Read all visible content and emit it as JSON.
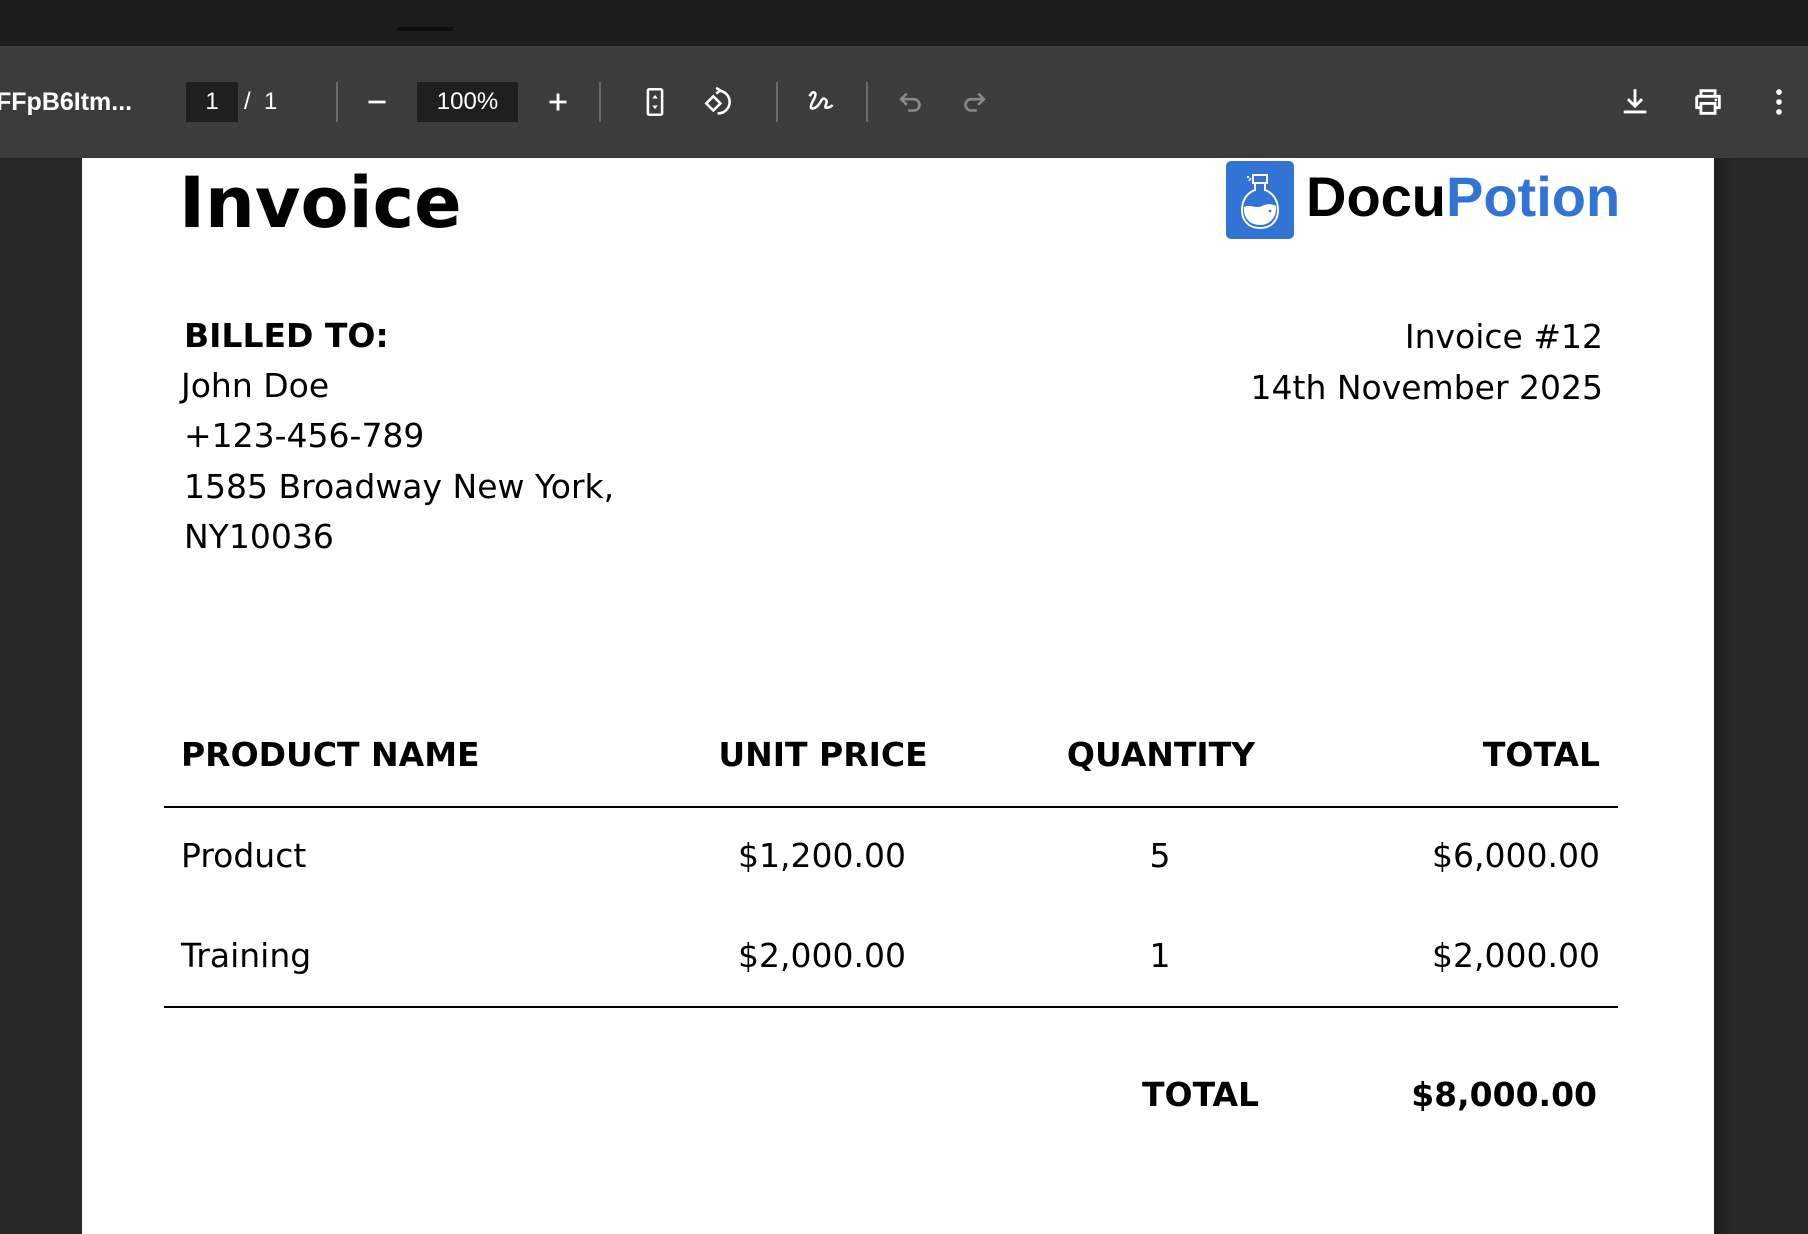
{
  "viewer": {
    "filename": "FFpB6Itm...",
    "page_current": "1",
    "page_separator": "/",
    "page_total": "1",
    "zoom": "100%",
    "icons": [
      "minus-icon",
      "plus-icon",
      "fit-page-icon",
      "rotate-icon",
      "draw-icon",
      "undo-icon",
      "redo-icon",
      "download-icon",
      "print-icon",
      "more-icon"
    ]
  },
  "invoice": {
    "title": "Invoice",
    "brand": {
      "part1": "Docu",
      "part2": "Potion",
      "accent": "#3273d6"
    },
    "billed_to_label": "BILLED TO:",
    "billed_to": [
      "John Doe",
      "+123-456-789",
      "1585 Broadway New York,",
      "NY10036"
    ],
    "number": "Invoice #12",
    "date": "14th November 2025",
    "table": {
      "headers": [
        "PRODUCT NAME",
        "UNIT PRICE",
        "QUANTITY",
        "TOTAL"
      ],
      "rows": [
        [
          "Product",
          "$1,200.00",
          "5",
          "$6,000.00"
        ],
        [
          "Training",
          "$2,000.00",
          "1",
          "$2,000.00"
        ]
      ]
    },
    "total_label": "TOTAL",
    "total_value": "$8,000.00"
  }
}
